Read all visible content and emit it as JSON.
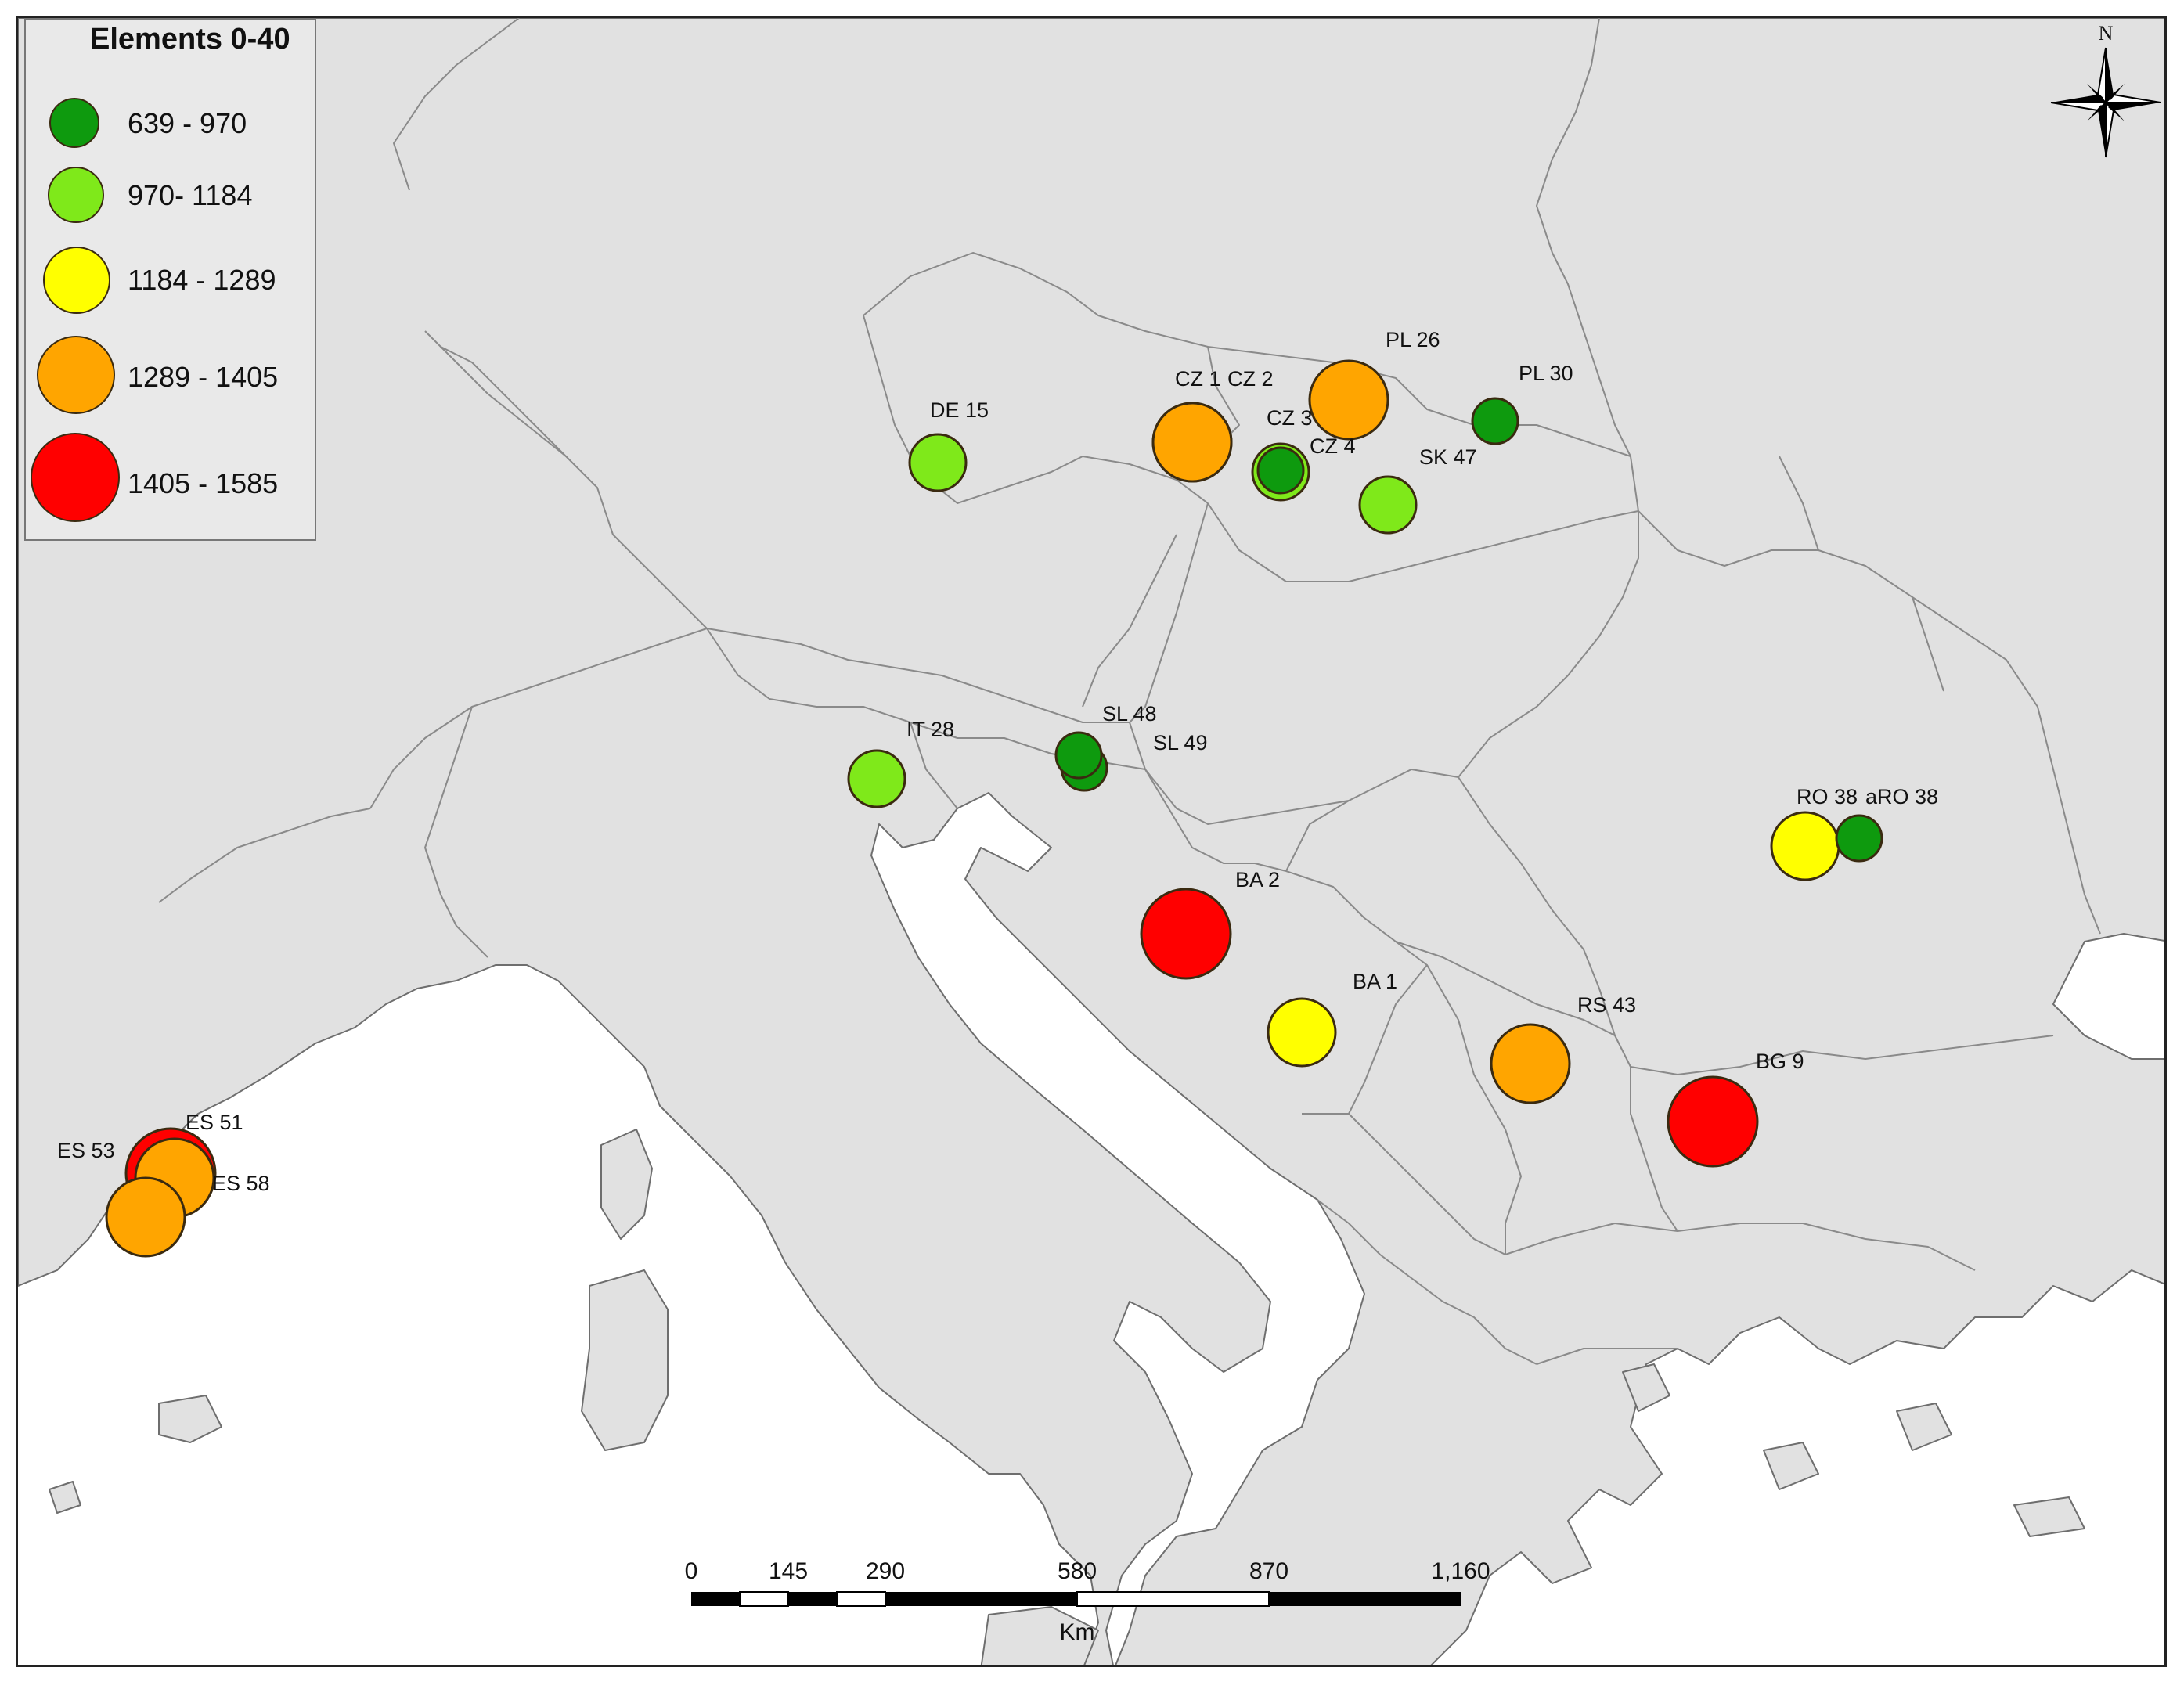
{
  "legend": {
    "title": "Elements 0-40",
    "classes": [
      {
        "label": "639 - 970",
        "color": "#0e9a0e"
      },
      {
        "label": "970- 1184",
        "color": "#7fe91a"
      },
      {
        "label": "1184 - 1289",
        "color": "#ffff00"
      },
      {
        "label": "1289 - 1405",
        "color": "#ffa500"
      },
      {
        "label": "1405 - 1585",
        "color": "#ff0000"
      }
    ]
  },
  "north_arrow": {
    "label": "N"
  },
  "scale_bar": {
    "ticks": [
      "0",
      "145",
      "290",
      "580",
      "870",
      "1,160"
    ],
    "unit": "Km"
  },
  "sites": [
    {
      "label": "DE 15",
      "class": 1
    },
    {
      "label": "CZ 1",
      "class": 3
    },
    {
      "label": "CZ 2",
      "class": 3
    },
    {
      "label": "CZ 3",
      "class": 0
    },
    {
      "label": "CZ 4",
      "class": 1
    },
    {
      "label": "PL 26",
      "class": 3
    },
    {
      "label": "PL 30",
      "class": 0
    },
    {
      "label": "SK 47",
      "class": 1
    },
    {
      "label": "IT 28",
      "class": 1
    },
    {
      "label": "SL 48",
      "class": 0
    },
    {
      "label": "SL 49",
      "class": 0
    },
    {
      "label": "RO 38",
      "class": 2
    },
    {
      "label": "aRO 38",
      "class": 0
    },
    {
      "label": "BA 2",
      "class": 4
    },
    {
      "label": "BA 1",
      "class": 2
    },
    {
      "label": "RS 43",
      "class": 3
    },
    {
      "label": "BG 9",
      "class": 4
    },
    {
      "label": "ES 53",
      "class": 4
    },
    {
      "label": "ES 51",
      "class": 3
    },
    {
      "label": "ES 58",
      "class": 3
    }
  ]
}
